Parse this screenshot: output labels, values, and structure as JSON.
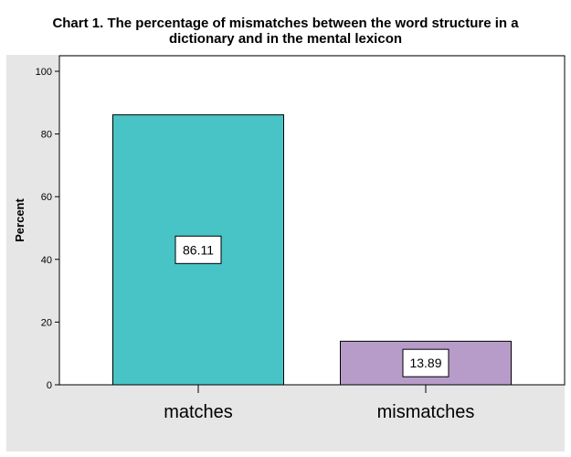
{
  "chart_data": {
    "type": "bar",
    "title": "Chart 1. The percentage of mismatches between the word structure in a dictionary and in the mental lexicon",
    "title_lines": [
      "Chart 1. The percentage of mismatches between the word structure in a",
      "dictionary and in the mental lexicon"
    ],
    "xlabel": "",
    "ylabel": "Percent",
    "categories": [
      "matches",
      "mismatches"
    ],
    "values": [
      86.11,
      13.89
    ],
    "data_labels": [
      "86.11",
      "13.89"
    ],
    "ylim": [
      0,
      100
    ],
    "yticks": [
      0,
      20,
      40,
      60,
      80,
      100
    ],
    "ytick_labels": [
      "0",
      "20",
      "40",
      "60",
      "80",
      "100"
    ],
    "colors": [
      "#48c4c6",
      "#b79cc9"
    ],
    "background": "#e6e6e6",
    "plot_background": "#ffffff",
    "grid": false,
    "legend": "none"
  }
}
